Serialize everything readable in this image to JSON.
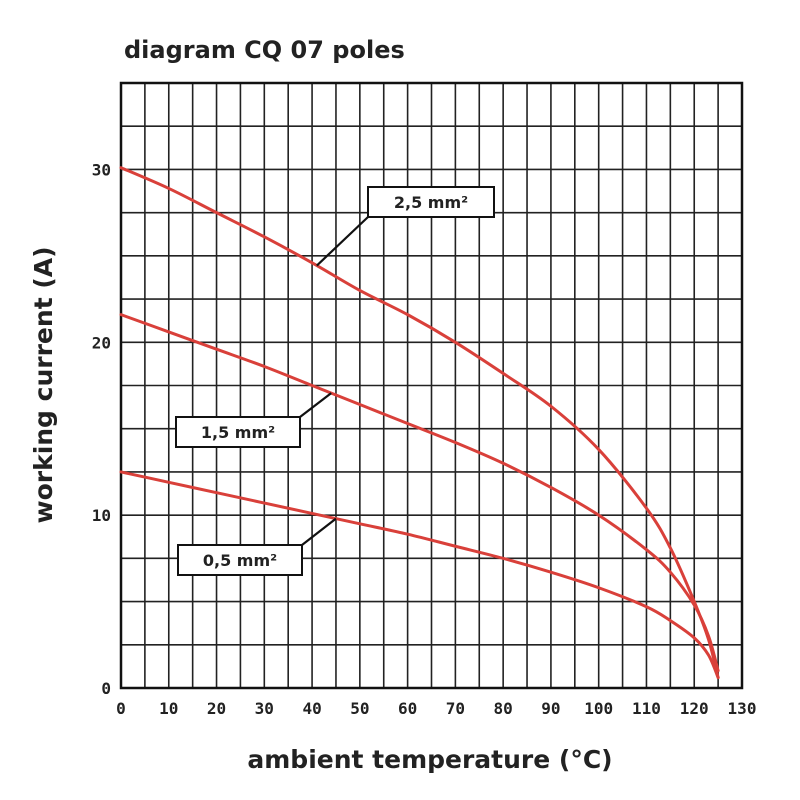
{
  "chart_data": {
    "type": "line",
    "title": "diagram CQ 07 poles",
    "xlabel": "ambient temperature (°C)",
    "ylabel": "working current (A)",
    "xlim": [
      0,
      130
    ],
    "ylim": [
      0,
      35
    ],
    "x_ticks": [
      0,
      10,
      20,
      30,
      40,
      50,
      60,
      70,
      80,
      90,
      100,
      110,
      120,
      130
    ],
    "y_ticks": [
      0,
      10,
      20,
      30
    ],
    "grid": true,
    "line_color": "#d9403a",
    "series": [
      {
        "name": "2,5 mm²",
        "x": [
          0,
          10,
          20,
          30,
          40,
          50,
          60,
          70,
          80,
          90,
          100,
          110,
          115,
          120,
          123,
          125
        ],
        "y": [
          30.1,
          28.9,
          27.5,
          26.1,
          24.6,
          23.0,
          21.6,
          20.0,
          18.2,
          16.3,
          13.8,
          10.4,
          8.1,
          5.0,
          2.8,
          0.6
        ]
      },
      {
        "name": "1,5 mm²",
        "x": [
          0,
          10,
          20,
          30,
          40,
          50,
          60,
          70,
          80,
          90,
          100,
          110,
          115,
          120,
          123,
          125
        ],
        "y": [
          21.6,
          20.6,
          19.6,
          18.6,
          17.5,
          16.4,
          15.3,
          14.2,
          13.0,
          11.6,
          10.0,
          8.0,
          6.7,
          4.8,
          3.0,
          1.0
        ]
      },
      {
        "name": "0,5 mm²",
        "x": [
          0,
          10,
          20,
          30,
          40,
          50,
          60,
          70,
          80,
          90,
          100,
          110,
          115,
          120,
          123,
          125
        ],
        "y": [
          12.5,
          11.9,
          11.3,
          10.7,
          10.1,
          9.5,
          8.9,
          8.2,
          7.5,
          6.7,
          5.8,
          4.7,
          3.9,
          2.9,
          1.9,
          0.6
        ]
      }
    ],
    "callouts": [
      {
        "label": "2,5 mm²",
        "series": 0,
        "anchor_x": 41
      },
      {
        "label": "1,5 mm²",
        "series": 1,
        "anchor_x": 44
      },
      {
        "label": "0,5 mm²",
        "series": 2,
        "anchor_x": 45
      }
    ]
  }
}
